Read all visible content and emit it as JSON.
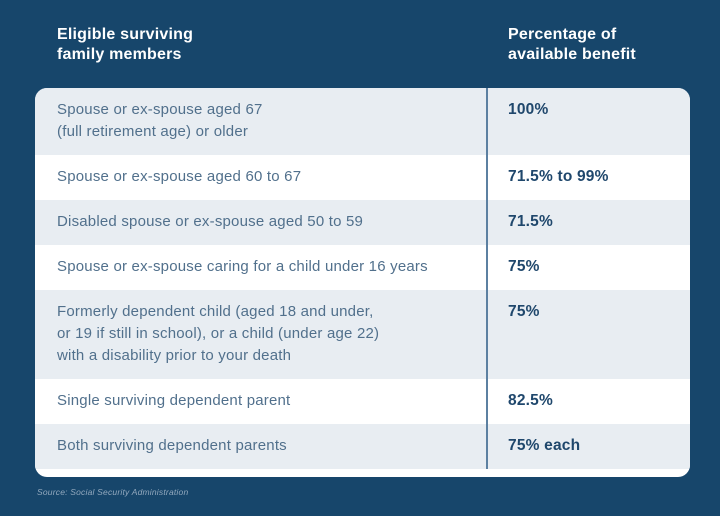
{
  "colors": {
    "background": "#17466B",
    "row_alt": "#E8EDF2",
    "row_white": "#FFFFFF",
    "divider": "#5C80A1",
    "header_text": "#FFFFFF",
    "member_text": "#51708C",
    "percent_text": "#1F476C",
    "source_text": "#93A9BE"
  },
  "header": {
    "col1": "Eligible surviving\nfamily members",
    "col2": "Percentage of\navailable benefit"
  },
  "table": {
    "rows": [
      {
        "member": "Spouse or ex-spouse aged 67\n(full retirement age) or older",
        "percent": "100%"
      },
      {
        "member": "Spouse or ex-spouse aged 60 to 67",
        "percent": "71.5% to 99%"
      },
      {
        "member": "Disabled spouse or ex-spouse aged 50 to 59",
        "percent": "71.5%"
      },
      {
        "member": "Spouse or ex-spouse caring for a child under 16 years",
        "percent": "75%"
      },
      {
        "member": "Formerly dependent child (aged 18 and under,\nor 19 if still in school), or a child (under age 22)\nwith a disability prior to your death",
        "percent": "75%"
      },
      {
        "member": "Single surviving dependent parent",
        "percent": "82.5%"
      },
      {
        "member": "Both surviving dependent parents",
        "percent": "75% each"
      }
    ]
  },
  "source": "Source: Social Security Administration",
  "chart_data": {
    "type": "table",
    "columns": [
      "Eligible surviving family members",
      "Percentage of available benefit"
    ],
    "rows": [
      [
        "Spouse or ex-spouse aged 67 (full retirement age) or older",
        "100%"
      ],
      [
        "Spouse or ex-spouse aged 60 to 67",
        "71.5% to 99%"
      ],
      [
        "Disabled spouse or ex-spouse aged 50 to 59",
        "71.5%"
      ],
      [
        "Spouse or ex-spouse caring for a child under 16 years",
        "75%"
      ],
      [
        "Formerly dependent child (aged 18 and under, or 19 if still in school), or a child (under age 22) with a disability prior to your death",
        "75%"
      ],
      [
        "Single surviving dependent parent",
        "82.5%"
      ],
      [
        "Both surviving dependent parents",
        "75% each"
      ]
    ],
    "source": "Source: Social Security Administration"
  }
}
